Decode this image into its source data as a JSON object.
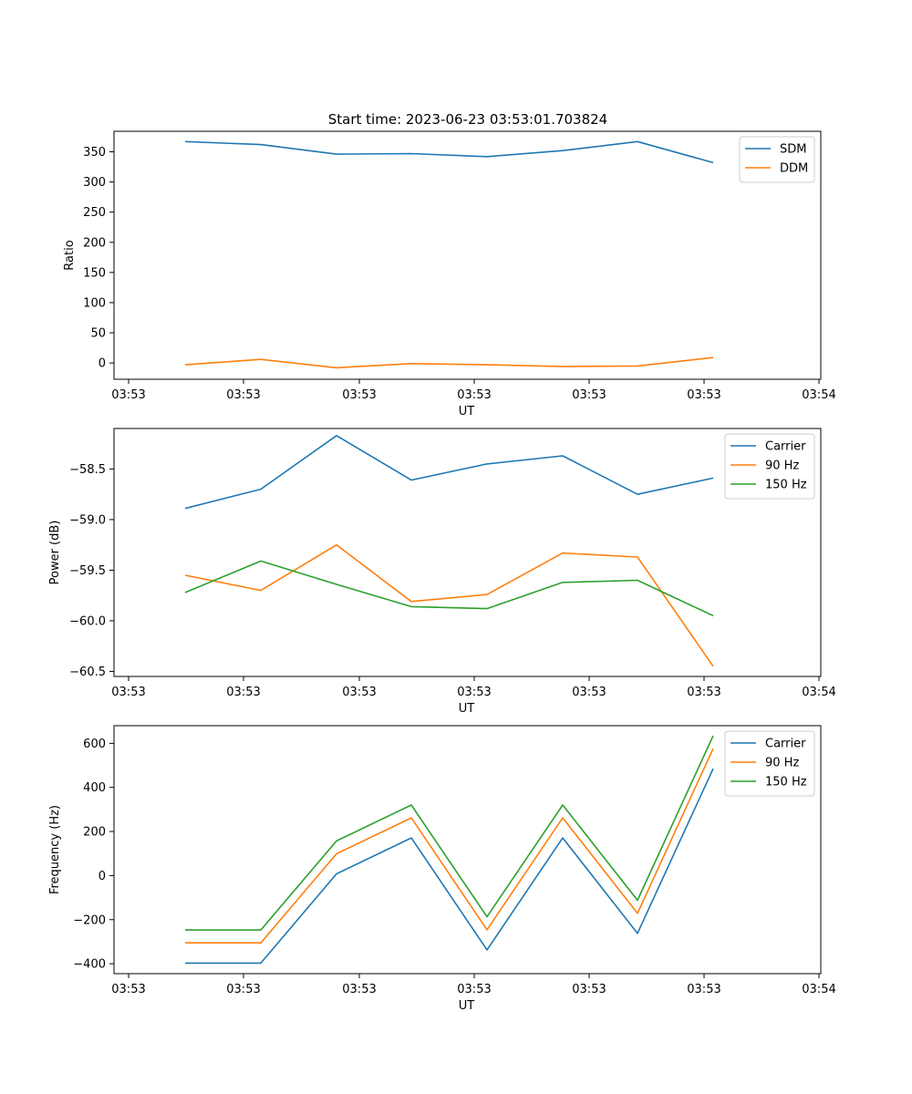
{
  "figure": {
    "title": "Start time: 2023-06-23 03:53:01.703824"
  },
  "chart_data": [
    {
      "type": "line",
      "xlabel": "UT",
      "ylabel": "Ratio",
      "x_tick_labels": [
        "03:53",
        "03:53",
        "03:53",
        "03:53",
        "03:53",
        "03:53",
        "03:53"
      ],
      "x_last_tick_label": "03:54",
      "y_ticks": [
        0,
        50,
        100,
        150,
        200,
        250,
        300,
        350
      ],
      "ylim": [
        -27,
        384
      ],
      "grid": false,
      "legend": "top-right",
      "series": [
        {
          "name": "SDM",
          "color": "#1f77b4",
          "values": [
            367,
            362,
            346,
            347,
            342,
            352,
            367,
            332
          ]
        },
        {
          "name": "DDM",
          "color": "#ff7f0e",
          "values": [
            -3,
            6,
            -8,
            -1,
            -3,
            -6,
            -5,
            9
          ]
        }
      ]
    },
    {
      "type": "line",
      "xlabel": "UT",
      "ylabel": "Power (dB)",
      "x_tick_labels": [
        "03:53",
        "03:53",
        "03:53",
        "03:53",
        "03:53",
        "03:53",
        "03:53"
      ],
      "x_last_tick_label": "03:54",
      "y_ticks": [
        -60.5,
        -60.0,
        -59.5,
        -59.0,
        -58.5
      ],
      "y_tick_labels": [
        "−60.5",
        "−60.0",
        "−59.5",
        "−59.0",
        "−58.5"
      ],
      "ylim": [
        -60.55,
        -58.1
      ],
      "grid": false,
      "legend": "top-right",
      "series": [
        {
          "name": "Carrier",
          "color": "#1f77b4",
          "values": [
            -58.89,
            -58.7,
            -58.17,
            -58.61,
            -58.45,
            -58.37,
            -58.75,
            -58.59
          ]
        },
        {
          "name": "90 Hz",
          "color": "#ff7f0e",
          "values": [
            -59.55,
            -59.7,
            -59.25,
            -59.81,
            -59.74,
            -59.33,
            -59.37,
            -60.45
          ]
        },
        {
          "name": "150 Hz",
          "color": "#2ca02c",
          "values": [
            -59.72,
            -59.41,
            -59.64,
            -59.86,
            -59.88,
            -59.62,
            -59.6,
            -59.95
          ]
        }
      ]
    },
    {
      "type": "line",
      "xlabel": "UT",
      "ylabel": "Frequency (Hz)",
      "x_tick_labels": [
        "03:53",
        "03:53",
        "03:53",
        "03:53",
        "03:53",
        "03:53",
        "03:53"
      ],
      "x_last_tick_label": "03:54",
      "y_ticks": [
        -400,
        -200,
        0,
        200,
        400,
        600
      ],
      "y_tick_labels": [
        "−400",
        "−200",
        "0",
        "200",
        "400",
        "600"
      ],
      "ylim": [
        -445,
        680
      ],
      "grid": false,
      "legend": "top-right",
      "series": [
        {
          "name": "Carrier",
          "color": "#1f77b4",
          "values": [
            -397,
            -397,
            8,
            171,
            -337,
            171,
            -262,
            485
          ]
        },
        {
          "name": "90 Hz",
          "color": "#ff7f0e",
          "values": [
            -305,
            -305,
            99,
            262,
            -246,
            262,
            -171,
            576
          ]
        },
        {
          "name": "150 Hz",
          "color": "#2ca02c",
          "values": [
            -247,
            -247,
            157,
            320,
            -187,
            320,
            -112,
            634
          ]
        }
      ]
    }
  ]
}
